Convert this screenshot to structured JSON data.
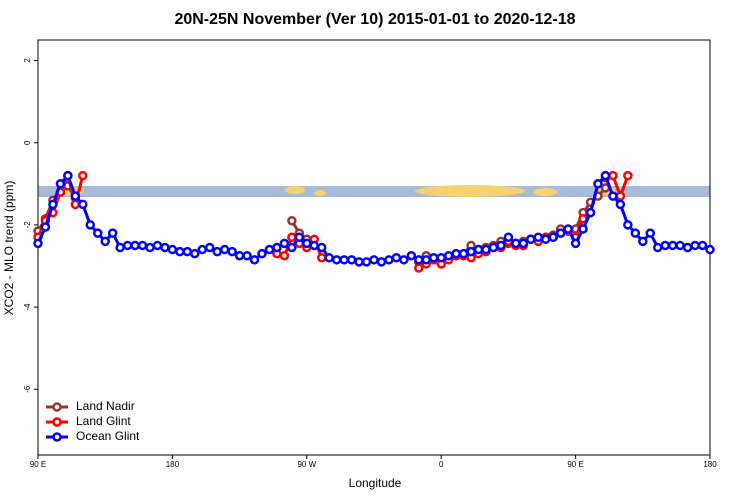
{
  "chart_data": {
    "type": "line",
    "title": "20N-25N November (Ver 10)   2015-01-01 to 2020-12-18",
    "xlabel": "Longitude",
    "ylabel": "XCO2 - MLO trend (ppm)",
    "x": [
      90,
      95,
      100,
      105,
      110,
      115,
      120,
      125,
      130,
      135,
      140,
      145,
      150,
      155,
      160,
      165,
      170,
      175,
      180,
      185,
      190,
      195,
      200,
      205,
      210,
      215,
      220,
      225,
      230,
      235,
      240,
      245,
      250,
      255,
      260,
      265,
      270,
      275,
      280,
      285,
      290,
      295,
      300,
      305,
      310,
      315,
      320,
      325,
      330,
      335,
      340,
      345,
      350,
      355,
      360,
      365,
      370,
      375,
      380,
      385,
      390,
      395,
      400,
      405,
      410,
      415,
      420,
      425,
      430,
      435,
      440,
      445,
      450,
      455,
      460,
      465,
      470,
      475,
      480,
      485,
      490,
      495,
      500,
      505,
      510,
      515,
      520,
      525,
      530,
      535,
      540
    ],
    "xlim": [
      90,
      540
    ],
    "xticks": [
      {
        "value": 90,
        "label": "90 E"
      },
      180,
      {
        "value": 270,
        "label": "90 W"
      },
      {
        "value": 360,
        "label": "0"
      },
      {
        "value": 450,
        "label": "90 E"
      },
      {
        "value": 540,
        "label": "180"
      }
    ],
    "ylim": [
      -7.6,
      2.5
    ],
    "yticks": [
      2,
      0,
      -2,
      -4,
      -6
    ],
    "legend": "bottom-left",
    "series": [
      {
        "name": "Land Nadir",
        "color": "#993333",
        "values": [
          -2.15,
          -1.85,
          -1.4,
          -1.2,
          -1.05,
          -1.35,
          null,
          null,
          null,
          null,
          null,
          null,
          null,
          null,
          null,
          null,
          null,
          null,
          null,
          null,
          null,
          null,
          null,
          null,
          null,
          null,
          null,
          null,
          null,
          null,
          null,
          null,
          null,
          null,
          -1.9,
          -2.2,
          -2.35,
          null,
          null,
          null,
          null,
          null,
          null,
          null,
          null,
          null,
          null,
          null,
          null,
          null,
          null,
          -2.9,
          -2.75,
          -2.85,
          -2.85,
          -2.8,
          -2.75,
          -2.7,
          -2.5,
          -2.6,
          -2.55,
          -2.5,
          -2.4,
          -2.45,
          -2.45,
          -2.4,
          -2.35,
          -2.35,
          -2.3,
          -2.25,
          -2.1,
          -2.15,
          -2.1,
          -1.7,
          -1.45,
          -1.3,
          -1.1,
          null,
          null,
          null,
          null,
          null,
          null,
          null,
          null,
          null,
          null,
          null,
          null,
          null,
          null
        ]
      },
      {
        "name": "Land Glint",
        "color": "#ff0000",
        "values": [
          -2.3,
          -1.9,
          -1.7,
          -1.2,
          -0.8,
          -1.5,
          -0.8,
          null,
          null,
          null,
          null,
          null,
          null,
          null,
          null,
          null,
          null,
          null,
          null,
          null,
          null,
          null,
          null,
          null,
          null,
          null,
          null,
          null,
          null,
          null,
          null,
          null,
          -2.7,
          -2.75,
          -2.3,
          -2.45,
          -2.55,
          -2.35,
          -2.8,
          null,
          null,
          null,
          null,
          null,
          null,
          null,
          null,
          null,
          null,
          null,
          null,
          -3.05,
          -2.95,
          -2.85,
          -2.95,
          -2.85,
          -2.75,
          -2.75,
          -2.8,
          -2.7,
          -2.65,
          -2.55,
          -2.55,
          -2.4,
          -2.5,
          -2.5,
          -2.35,
          -2.4,
          -2.3,
          -2.3,
          -2.2,
          -2.15,
          -2.3,
          -1.85,
          -1.7,
          -1.0,
          -0.85,
          -0.8,
          -1.3,
          -0.8,
          null,
          null,
          null,
          null,
          null,
          null,
          null,
          null,
          null,
          null,
          null
        ]
      },
      {
        "name": "Ocean Glint",
        "color": "#0000ff",
        "values": [
          -2.45,
          -2.05,
          -1.5,
          -1.0,
          -0.8,
          -1.3,
          -1.5,
          -2.0,
          -2.2,
          -2.4,
          -2.2,
          -2.55,
          -2.5,
          -2.5,
          -2.5,
          -2.55,
          -2.5,
          -2.55,
          -2.6,
          -2.65,
          -2.65,
          -2.7,
          -2.6,
          -2.55,
          -2.65,
          -2.6,
          -2.65,
          -2.75,
          -2.75,
          -2.85,
          -2.7,
          -2.6,
          -2.55,
          -2.45,
          -2.55,
          -2.3,
          -2.45,
          -2.5,
          -2.55,
          -2.8,
          -2.85,
          -2.85,
          -2.85,
          -2.9,
          -2.9,
          -2.85,
          -2.9,
          -2.85,
          -2.8,
          -2.85,
          -2.75,
          -2.85,
          -2.85,
          -2.8,
          -2.8,
          -2.75,
          -2.7,
          -2.7,
          -2.65,
          -2.6,
          -2.6,
          -2.55,
          -2.5,
          -2.3,
          -2.45,
          -2.45,
          -2.35,
          -2.3,
          -2.35,
          -2.3,
          -2.2,
          -2.1,
          -2.45,
          -2.1,
          -1.7,
          -1.0,
          -0.8,
          -1.3,
          -1.5,
          -2.0,
          -2.2,
          -2.4,
          -2.2,
          -2.55,
          -2.5,
          -2.5,
          -2.5,
          -2.55,
          -2.5,
          -2.5,
          -2.6
        ]
      }
    ]
  }
}
